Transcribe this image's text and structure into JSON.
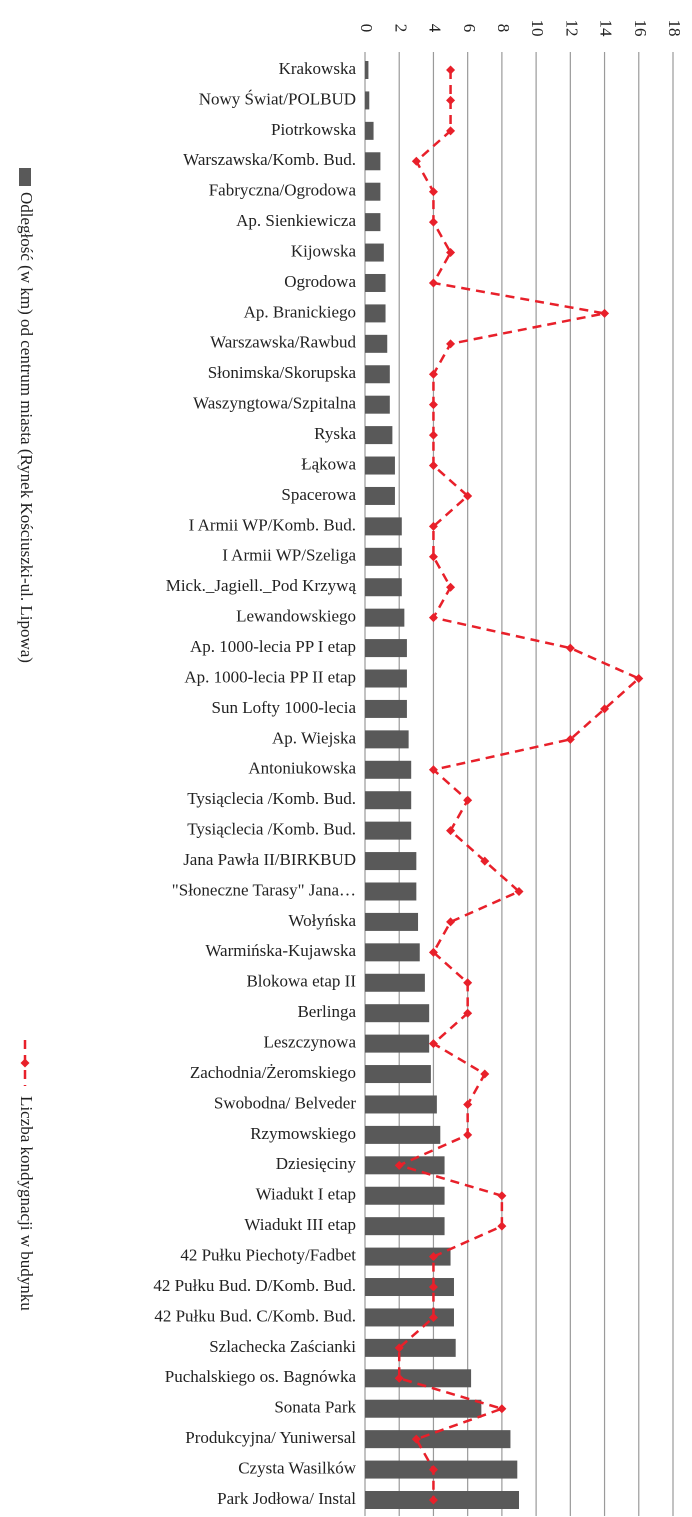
{
  "chart_data": {
    "type": "bar",
    "orientation": "horizontal",
    "legend": "left",
    "grid": true,
    "categories": [
      "Krakowska",
      "Nowy Świat/POLBUD",
      "Piotrkowska",
      "Warszawska/Komb. Bud.",
      "Fabryczna/Ogrodowa",
      "Ap. Sienkiewicza",
      "Kijowska",
      "Ogrodowa",
      "Ap. Branickiego",
      "Warszawska/Rawbud",
      "Słonimska/Skorupska",
      "Waszyngtowa/Szpitalna",
      "Ryska",
      "Łąkowa",
      "Spacerowa",
      "I Armii WP/Komb. Bud.",
      "I Armii WP/Szeliga",
      "Mick._Jagiell._Pod Krzywą",
      "Lewandowskiego",
      "Ap. 1000-lecia PP I etap",
      "Ap. 1000-lecia PP II etap",
      "Sun Lofty 1000-lecia",
      "Ap. Wiejska",
      "Antoniukowska",
      "Tysiąclecia /Komb. Bud.",
      "Tysiąclecia /Komb. Bud.",
      "Jana Pawła II/BIRKBUD",
      "\"Słoneczne Tarasy\" Jana…",
      "Wołyńska",
      "Warmińska-Kujawska",
      "Blokowa etap II",
      "Berlinga",
      "Leszczynowa",
      "Zachodnia/Żeromskiego",
      "Swobodna/ Belveder",
      "Rzymowskiego",
      "Dziesięciny",
      "Wiadukt I etap",
      "Wiadukt III etap",
      "42 Pułku Piechoty/Fadbet",
      "42 Pułku Bud. D/Komb. Bud.",
      "42 Pułku Bud. C/Komb. Bud.",
      "Szlachecka Zaścianki",
      "Puchalskiego os. Bagnówka",
      "Sonata Park",
      "Produkcyjna/ Yuniwersal",
      "Czysta Wasilków",
      "Park Jodłowa/ Instal"
    ],
    "series": [
      {
        "name": "Odległość (w km) od centrum miasta (Rynek Kościuszki-ul. Lipowa)",
        "type": "bar",
        "color": "#595959",
        "values": [
          0.2,
          0.25,
          0.5,
          0.9,
          0.9,
          0.9,
          1.1,
          1.2,
          1.2,
          1.3,
          1.45,
          1.45,
          1.6,
          1.75,
          1.75,
          2.15,
          2.15,
          2.15,
          2.3,
          2.45,
          2.45,
          2.45,
          2.55,
          2.7,
          2.7,
          2.7,
          3.0,
          3.0,
          3.1,
          3.2,
          3.5,
          3.75,
          3.75,
          3.85,
          4.2,
          4.4,
          4.65,
          4.65,
          4.65,
          5.0,
          5.2,
          5.2,
          5.3,
          6.2,
          6.8,
          8.5,
          8.9,
          9.0
        ]
      },
      {
        "name": "Liczba kondygnacji w budynku",
        "type": "line",
        "color": "#e8202a",
        "values": [
          5,
          5,
          5,
          3,
          4,
          4,
          5,
          4,
          14,
          5,
          4,
          4,
          4,
          4,
          6,
          4,
          4,
          5,
          4,
          12,
          16,
          14,
          12,
          4,
          6,
          5,
          7,
          9,
          5,
          4,
          6,
          6,
          4,
          7,
          6,
          6,
          2,
          8,
          8,
          4,
          4,
          4,
          2,
          2,
          8,
          3,
          4,
          4
        ]
      }
    ],
    "xlim": [
      0,
      18
    ],
    "xticks": [
      0,
      2,
      4,
      6,
      8,
      10,
      12,
      14,
      16,
      18
    ]
  }
}
